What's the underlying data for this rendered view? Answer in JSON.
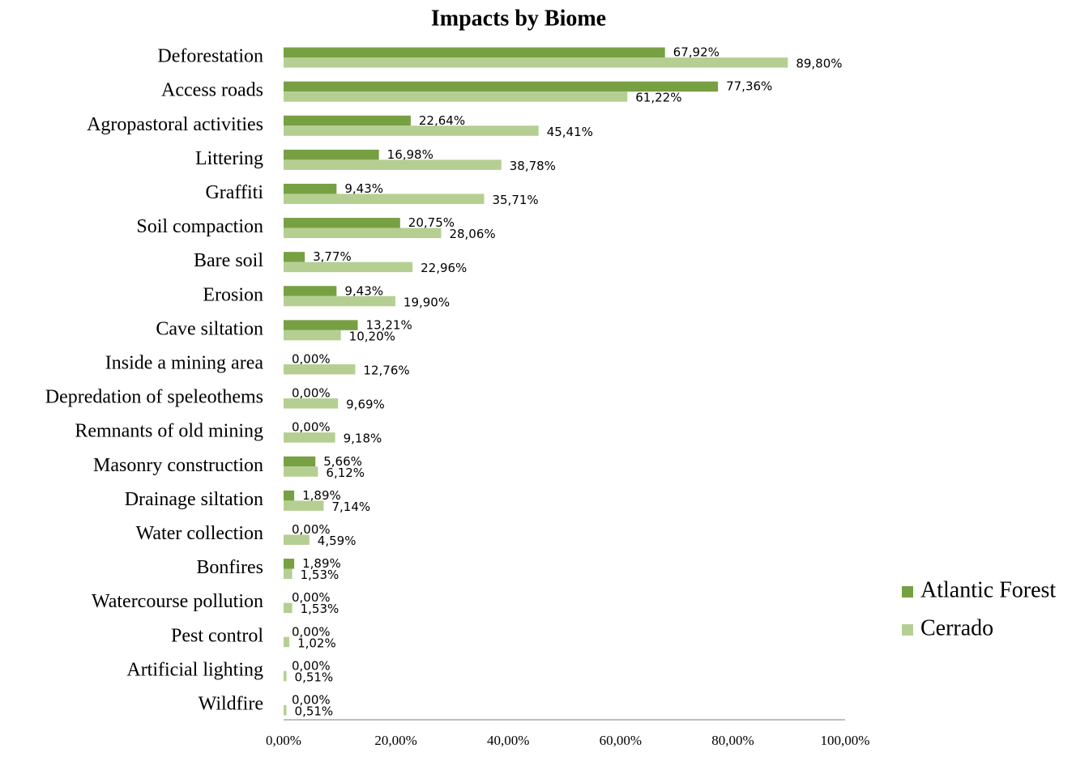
{
  "chart_data": {
    "type": "bar",
    "orientation": "horizontal",
    "title": "Impacts by Biome",
    "categories": [
      "Deforestation",
      "Access roads",
      "Agropastoral activities",
      "Littering",
      "Graffiti",
      "Soil compaction",
      "Bare soil",
      "Erosion",
      "Cave siltation",
      "Inside a mining area",
      "Depredation of speleothems",
      "Remnants of old mining",
      "Masonry construction",
      "Drainage siltation",
      "Water collection",
      "Bonfires",
      "Watercourse pollution",
      "Pest control",
      "Artificial lighting",
      "Wildfire"
    ],
    "series": [
      {
        "name": "Atlantic Forest",
        "color": "#77a043",
        "values": [
          67.92,
          77.36,
          22.64,
          16.98,
          9.43,
          20.75,
          3.77,
          9.43,
          13.21,
          0,
          0,
          0,
          5.66,
          1.89,
          0,
          1.89,
          0,
          0,
          0,
          0
        ],
        "value_labels": [
          "67,92%",
          "77,36%",
          "22,64%",
          "16,98%",
          "9,43%",
          "20,75%",
          "3,77%",
          "9,43%",
          "13,21%",
          "0,00%",
          "0,00%",
          "0,00%",
          "5,66%",
          "1,89%",
          "0,00%",
          "1,89%",
          "0,00%",
          "0,00%",
          "0,00%",
          "0,00%"
        ]
      },
      {
        "name": "Cerrado",
        "color": "#b5cf92",
        "values": [
          89.8,
          61.22,
          45.41,
          38.78,
          35.71,
          28.06,
          22.96,
          19.9,
          10.2,
          12.76,
          9.69,
          9.18,
          6.12,
          7.14,
          4.59,
          1.53,
          1.53,
          1.02,
          0.51,
          0.51
        ],
        "value_labels": [
          "89,80%",
          "61,22%",
          "45,41%",
          "38,78%",
          "35,71%",
          "28,06%",
          "22,96%",
          "19,90%",
          "10,20%",
          "12,76%",
          "9,69%",
          "9,18%",
          "6,12%",
          "7,14%",
          "4,59%",
          "1,53%",
          "1,53%",
          "1,02%",
          "0,51%",
          "0,51%"
        ]
      }
    ],
    "xlim": [
      0,
      100
    ],
    "xticks": [
      {
        "value": 0,
        "label": "0,00%"
      },
      {
        "value": 20,
        "label": "20,00%"
      },
      {
        "value": 40,
        "label": "40,00%"
      },
      {
        "value": 60,
        "label": "60,00%"
      },
      {
        "value": 80,
        "label": "80,00%"
      },
      {
        "value": 100,
        "label": "100,00%"
      }
    ],
    "grid": false,
    "legend": "right"
  }
}
